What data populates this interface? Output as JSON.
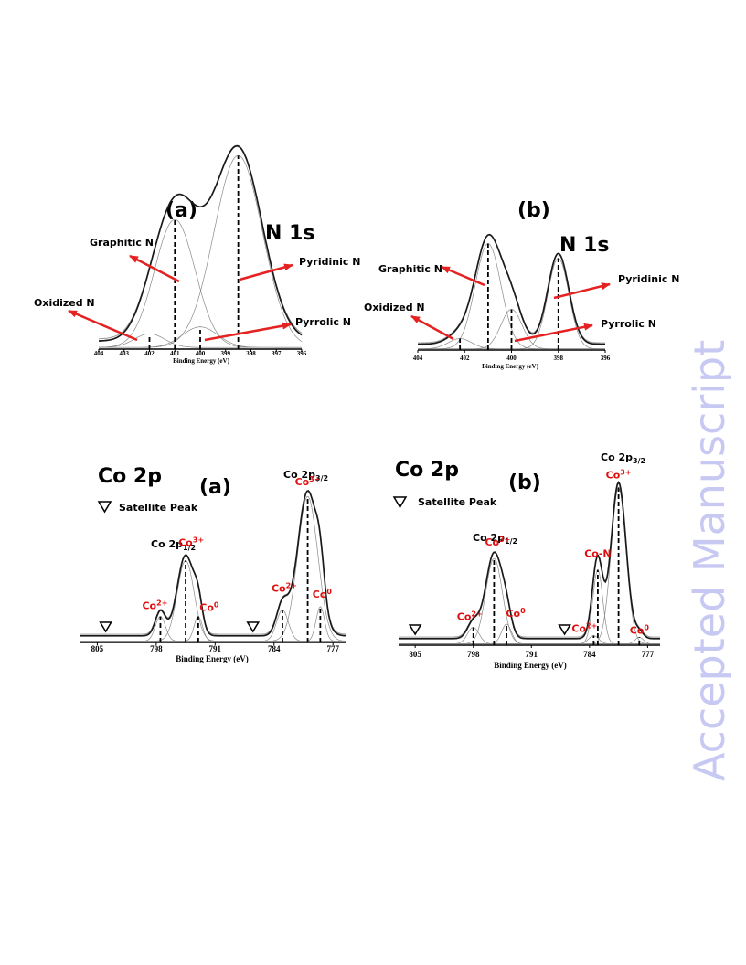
{
  "watermark": "Accepted Manuscript",
  "colors": {
    "arrow": "#e52121",
    "co_label": "#e01010",
    "watermark": "#c7c9f2"
  },
  "chart_data": [
    {
      "panel": "(a)",
      "title": "N 1s",
      "type": "line",
      "xlabel": "Binding Energy (eV)",
      "xlim": [
        404,
        396
      ],
      "xticks": [
        404,
        403,
        402,
        401,
        400,
        399,
        398,
        397,
        396
      ],
      "peaks": [
        {
          "name": "Oxidized N",
          "x": 402.0,
          "height": 0.06,
          "width": 0.6
        },
        {
          "name": "Graphitic N",
          "x": 401.0,
          "height": 0.56,
          "width": 0.8
        },
        {
          "name": "Pyrrolic N",
          "x": 400.0,
          "height": 0.09,
          "width": 0.7
        },
        {
          "name": "Pyridinic N",
          "x": 398.5,
          "height": 0.84,
          "width": 0.95
        }
      ]
    },
    {
      "panel": "(b)",
      "title": "N 1s",
      "type": "line",
      "xlabel": "Binding Energy (eV)",
      "xlim": [
        404,
        396
      ],
      "xticks": [
        404,
        402,
        400,
        398,
        396
      ],
      "peaks": [
        {
          "name": "Oxidized N",
          "x": 402.2,
          "height": 0.07,
          "width": 0.5
        },
        {
          "name": "Graphitic N",
          "x": 401.0,
          "height": 0.72,
          "width": 0.55
        },
        {
          "name": "Pyrrolic N",
          "x": 400.0,
          "height": 0.27,
          "width": 0.45
        },
        {
          "name": "Pyridinic N",
          "x": 398.0,
          "height": 0.62,
          "width": 0.45
        }
      ]
    },
    {
      "panel": "(a)",
      "title": "Co 2p",
      "type": "line",
      "xlabel": "Binding Energy (eV)",
      "xlim": [
        807,
        775.5
      ],
      "xticks": [
        805,
        798,
        791,
        784,
        777
      ],
      "legend": "Satellite Peak",
      "group_labels": {
        "p12": "Co 2p",
        "p12_sub": "1/2",
        "p32": "Co 2p",
        "p32_sub": "3/2"
      },
      "peaks": [
        {
          "label": "Co",
          "sup": "2+",
          "x": 797.5,
          "height": 0.15,
          "width": 0.6
        },
        {
          "label": "Co",
          "sup": "3+",
          "x": 794.5,
          "height": 0.49,
          "width": 1.0
        },
        {
          "label": "Co",
          "sup": "0",
          "x": 793.0,
          "height": 0.15,
          "width": 0.5
        },
        {
          "label": "Co",
          "sup": "2+",
          "x": 783.0,
          "height": 0.19,
          "width": 0.7
        },
        {
          "label": "Co",
          "sup": "3+",
          "x": 780.0,
          "height": 0.88,
          "width": 1.2
        },
        {
          "label": "Co",
          "sup": "0",
          "x": 778.5,
          "height": 0.21,
          "width": 0.5
        }
      ],
      "satellites": [
        804.0,
        786.5
      ]
    },
    {
      "panel": "(b)",
      "title": "Co 2p",
      "type": "line",
      "xlabel": "Binding Energy (eV)",
      "xlim": [
        807,
        775.5
      ],
      "xticks": [
        805,
        798,
        791,
        784,
        777
      ],
      "legend": "Satellite Peak",
      "group_labels": {
        "p12": "Co 2p",
        "p12_sub": "1/2",
        "p32": "Co 2p",
        "p32_sub": "3/2"
      },
      "peaks": [
        {
          "label": "Co",
          "sup": "2+",
          "x": 798.0,
          "height": 0.1,
          "width": 0.7
        },
        {
          "label": "Co",
          "sup": "3+",
          "x": 795.5,
          "height": 0.52,
          "width": 1.0
        },
        {
          "label": "Co",
          "sup": "0",
          "x": 794.0,
          "height": 0.12,
          "width": 0.6
        },
        {
          "label": "Co-N",
          "sup": "",
          "x": 783.0,
          "height": 0.45,
          "width": 0.6
        },
        {
          "label": "Co",
          "sup": "2+",
          "x": 783.5,
          "height": 0.05,
          "width": 0.6
        },
        {
          "label": "Co",
          "sup": "3+",
          "x": 780.5,
          "height": 0.95,
          "width": 0.9
        },
        {
          "label": "Co",
          "sup": "0",
          "x": 778.0,
          "height": 0.04,
          "width": 0.5
        }
      ],
      "satellites": [
        805.0,
        787.0
      ]
    }
  ]
}
